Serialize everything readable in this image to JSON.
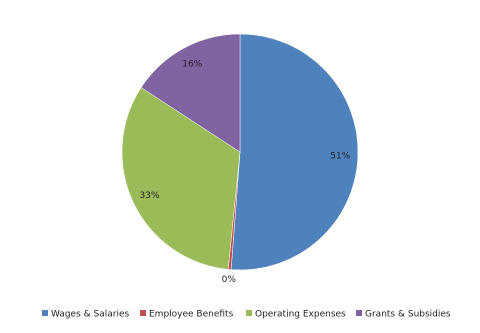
{
  "chart_data": {
    "type": "pie",
    "categories": [
      "Wages & Salaries",
      "Employee Benefits",
      "Operating Expenses",
      "Grants & Subsidies"
    ],
    "values": [
      51.2,
      0.4,
      32.6,
      15.8
    ],
    "value_labels": [
      "51%",
      "0%",
      "33%",
      "16%"
    ],
    "colors": [
      "#4f81bd",
      "#c0504d",
      "#9bbb59",
      "#8064a2"
    ],
    "legend": "bottom"
  }
}
